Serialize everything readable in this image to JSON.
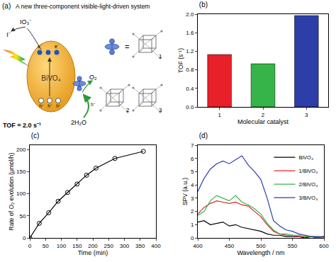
{
  "diagram": {
    "panel": "(a)",
    "title": "A new three-component visible-light-driven system",
    "semiconductor": "BiVO₄",
    "acceptor_ox": "IO₃⁻",
    "acceptor_red": "I⁻",
    "electron": "e⁻",
    "hole": "h⁺",
    "water": "2H₂O",
    "oxygen": "O₂",
    "tof": "TOF = 2.0 s⁻¹",
    "equals": "=",
    "catalysts": [
      "1",
      "2",
      "3"
    ]
  },
  "chart_data": [
    {
      "type": "bar",
      "title": "(b)",
      "x_label": "Molecular catalyst",
      "y_label": "TOF (s⁻¹)",
      "categories": [
        "1",
        "2",
        "3"
      ],
      "values": [
        1.13,
        0.93,
        1.97
      ],
      "colors": [
        "#e8202a",
        "#36b44a",
        "#2d3ea8"
      ],
      "ylim": [
        0,
        2.0
      ],
      "yticks": [
        {
          "value": 0,
          "label": "0.0"
        },
        {
          "value": 0.4,
          "label": "0.4"
        },
        {
          "value": 0.8,
          "label": "0.8"
        },
        {
          "value": 1.2,
          "label": "1.2"
        },
        {
          "value": 1.6,
          "label": "1.6"
        },
        {
          "value": 2.0,
          "label": "2.0"
        }
      ],
      "grid": false
    },
    {
      "type": "line",
      "title": "(c)",
      "x_label": "Time (min)",
      "y_label": "Rate of O₂ evolution (μmol/h)",
      "x": [
        0,
        30,
        60,
        90,
        120,
        150,
        180,
        210,
        270,
        360
      ],
      "values": [
        0,
        33,
        57,
        83,
        103,
        122,
        142,
        158,
        180,
        196
      ],
      "color": "#000000",
      "marker": "open circle",
      "xlim": [
        0,
        400
      ],
      "xticks": [
        0,
        50,
        100,
        150,
        200,
        250,
        300,
        350,
        400
      ],
      "ylim": [
        0,
        210
      ],
      "yticks": [
        0,
        50,
        100,
        150,
        200
      ],
      "grid": false
    },
    {
      "type": "line",
      "title": "(d)",
      "x_label": "Wavelength / nm",
      "y_label": "SPV (a.u.)",
      "x": [
        400,
        410,
        420,
        430,
        440,
        450,
        460,
        470,
        480,
        490,
        500,
        510,
        520,
        530,
        540,
        550,
        560,
        570,
        580,
        590,
        600
      ],
      "series": [
        {
          "name": "BiVO₄",
          "color": "#000000",
          "values": [
            1.2,
            1.3,
            1.0,
            1.1,
            1.2,
            0.9,
            1.0,
            0.8,
            0.7,
            0.6,
            0.5,
            0.3,
            0.2,
            0.2,
            0.1,
            0.1,
            0.1,
            0.0,
            0.1,
            0.0,
            0.1
          ]
        },
        {
          "name": "1/BiVO₄",
          "color": "#e8202a",
          "values": [
            1.8,
            2.3,
            2.6,
            2.8,
            2.7,
            2.6,
            2.7,
            2.5,
            2.4,
            2.0,
            1.6,
            1.0,
            0.5,
            0.3,
            0.2,
            0.2,
            0.1,
            0.1,
            0.1,
            0.0,
            0.1
          ]
        },
        {
          "name": "2/BiVO₄",
          "color": "#36b44a",
          "values": [
            1.7,
            2.0,
            2.8,
            3.2,
            3.0,
            2.8,
            3.2,
            2.7,
            2.5,
            2.2,
            1.8,
            1.1,
            0.6,
            0.3,
            0.3,
            0.2,
            0.2,
            0.1,
            0.1,
            0.1,
            0.0
          ]
        },
        {
          "name": "3/BiVO₄",
          "color": "#2d3ea8",
          "values": [
            3.5,
            4.5,
            5.2,
            5.6,
            5.8,
            5.6,
            5.9,
            6.2,
            5.5,
            5.0,
            4.4,
            3.0,
            1.3,
            0.9,
            0.6,
            0.5,
            0.3,
            0.2,
            0.1,
            0.1,
            0.1
          ]
        }
      ],
      "xlim": [
        400,
        600
      ],
      "xticks": [
        400,
        450,
        500,
        550,
        600
      ],
      "ylim": [
        0,
        7
      ],
      "yticks": [
        0,
        1,
        2,
        3,
        4,
        5,
        6,
        7
      ],
      "legend": "top right",
      "grid": false
    }
  ]
}
